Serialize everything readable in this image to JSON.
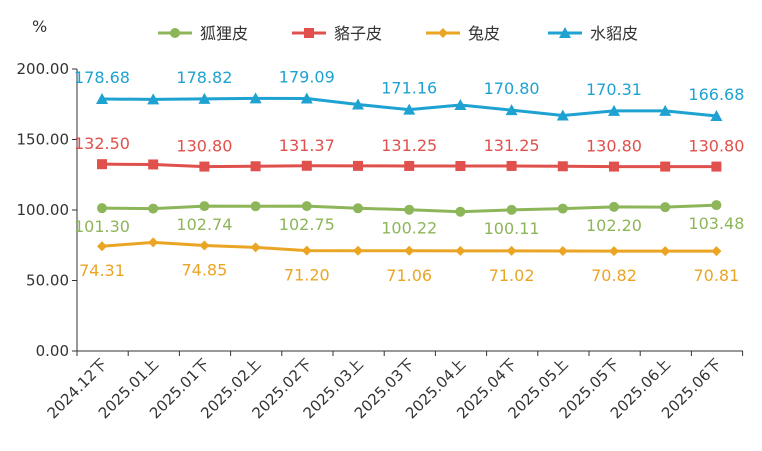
{
  "chart_data": {
    "type": "line",
    "unit_label": "%",
    "ylim": [
      0,
      200
    ],
    "yticks": [
      "0.00",
      "50.00",
      "100.00",
      "150.00",
      "200.00"
    ],
    "categories": [
      "2024.12下",
      "2025.01上",
      "2025.01下",
      "2025.02上",
      "2025.02下",
      "2025.03上",
      "2025.03下",
      "2025.04上",
      "2025.04下",
      "2025.05上",
      "2025.05下",
      "2025.06上",
      "2025.06下"
    ],
    "legend_position": "top",
    "grid": false,
    "series": [
      {
        "name": "狐狸皮",
        "color": "#8db559",
        "marker": "circle",
        "values": [
          101.3,
          101.0,
          102.74,
          102.7,
          102.75,
          101.2,
          100.22,
          98.8,
          100.11,
          101.0,
          102.2,
          102.0,
          103.48
        ],
        "labels": [
          "101.30",
          "",
          "102.74",
          "",
          "102.75",
          "",
          "100.22",
          "",
          "100.11",
          "",
          "102.20",
          "",
          "103.48"
        ]
      },
      {
        "name": "貉子皮",
        "color": "#e0504c",
        "marker": "square",
        "values": [
          132.5,
          132.3,
          130.8,
          131.0,
          131.37,
          131.3,
          131.25,
          131.2,
          131.25,
          131.0,
          130.8,
          130.8,
          130.8
        ],
        "labels": [
          "132.50",
          "",
          "130.80",
          "",
          "131.37",
          "",
          "131.25",
          "",
          "131.25",
          "",
          "130.80",
          "",
          "130.80"
        ]
      },
      {
        "name": "兔皮",
        "color": "#eba524",
        "marker": "diamond",
        "values": [
          74.31,
          77.0,
          74.85,
          73.5,
          71.2,
          71.1,
          71.06,
          71.0,
          71.02,
          70.9,
          70.82,
          70.8,
          70.81
        ],
        "labels": [
          "74.31",
          "",
          "74.85",
          "",
          "71.20",
          "",
          "71.06",
          "",
          "71.02",
          "",
          "70.82",
          "",
          "70.81"
        ]
      },
      {
        "name": "水貂皮",
        "color": "#1ea2d2",
        "marker": "triangle",
        "values": [
          178.68,
          178.5,
          178.82,
          179.2,
          179.09,
          174.8,
          171.16,
          174.5,
          170.8,
          167.0,
          170.31,
          170.3,
          166.68
        ],
        "labels": [
          "178.68",
          "",
          "178.82",
          "",
          "179.09",
          "",
          "171.16",
          "",
          "170.80",
          "",
          "170.31",
          "",
          "166.68"
        ]
      }
    ]
  }
}
